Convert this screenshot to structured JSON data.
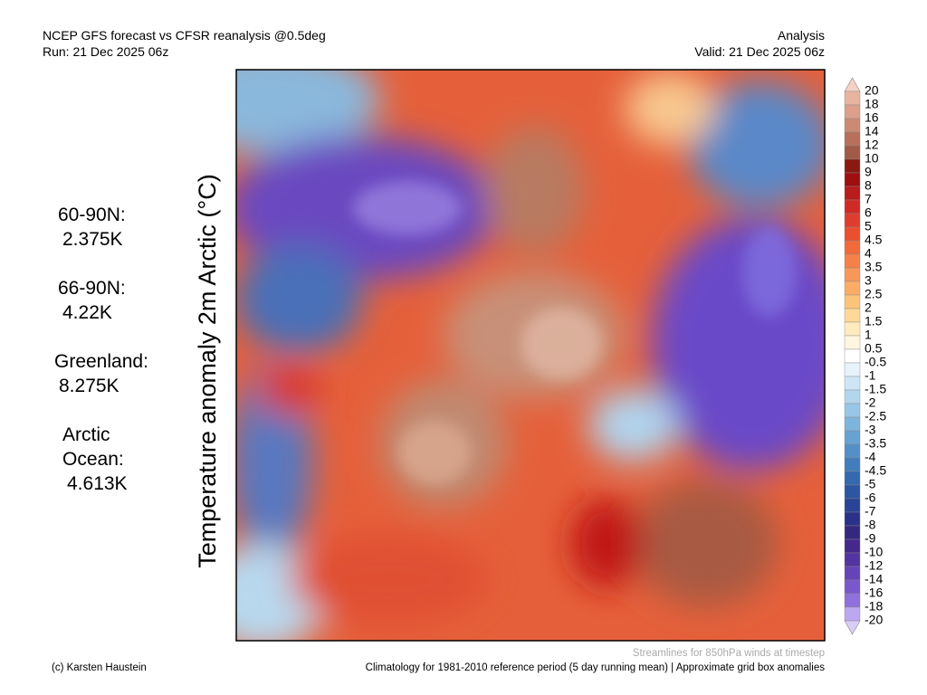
{
  "header": {
    "left": [
      "NCEP GFS forecast vs CFSR reanalysis @0.5deg",
      "Run: 21 Dec 2025 06z"
    ],
    "right": [
      "Analysis",
      "Valid: 21 Dec 2025 06z"
    ]
  },
  "axis_title": "Temperature anomaly 2m Arctic (°C)",
  "stats": [
    {
      "lines": [
        "60-90N:",
        "2.375K"
      ]
    },
    {
      "lines": [
        "66-90N:",
        "4.22K"
      ]
    },
    {
      "lines": [
        "Greenland:",
        "8.275K"
      ]
    },
    {
      "lines": [
        "Arctic",
        "Ocean:",
        "4.613K"
      ]
    }
  ],
  "colorbar": {
    "labels": [
      "20",
      "18",
      "16",
      "14",
      "12",
      "10",
      "9",
      "8",
      "7",
      "6",
      "5",
      "4.5",
      "4",
      "3.5",
      "3",
      "2.5",
      "2",
      "1.5",
      "1",
      "0.5",
      "-0.5",
      "-1",
      "-1.5",
      "-2",
      "-2.5",
      "-3",
      "-3.5",
      "-4",
      "-4.5",
      "-5",
      "-6",
      "-7",
      "-8",
      "-9",
      "-10",
      "-12",
      "-14",
      "-16",
      "-18",
      "-20"
    ],
    "over_color": "#f6d0c4",
    "colors": [
      "#e8b4a0",
      "#dca08a",
      "#cc8a72",
      "#b8705a",
      "#a05a46",
      "#8a1a10",
      "#9e0f10",
      "#b81c1c",
      "#d02a26",
      "#e03c2e",
      "#ea5030",
      "#f06a3a",
      "#f58048",
      "#f89858",
      "#fbad66",
      "#fcc47a",
      "#fdd898",
      "#feebbe",
      "#fff6e0",
      "#ffffff",
      "#e6f3fb",
      "#cce6f5",
      "#b2d6ee",
      "#98c6e6",
      "#7eb4dc",
      "#68a2d2",
      "#5490c8",
      "#427cbc",
      "#3468b0",
      "#2c56a2",
      "#284494",
      "#2a3288",
      "#34287e",
      "#44288c",
      "#5434a0",
      "#6644b8",
      "#7a58cc",
      "#9070dc",
      "#bca8f0"
    ],
    "under_color": "#d8ccf8"
  },
  "footer": {
    "note": "Streamlines for 850hPa winds at timestep",
    "credit": "(c) Karsten Haustein",
    "climatology": "Climatology for 1981-2010 reference period (5 day running mean) | Approximate grid box anomalies"
  }
}
